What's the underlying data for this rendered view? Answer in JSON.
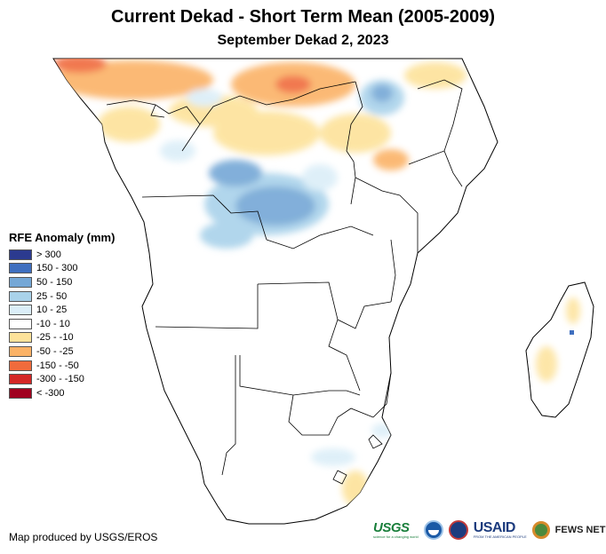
{
  "title": "Current Dekad - Short Term Mean (2005-2009)",
  "subtitle": "September Dekad 2, 2023",
  "legend": {
    "title": "RFE Anomaly (mm)",
    "items": [
      {
        "label": "> 300",
        "color": "#2b3a8f"
      },
      {
        "label": "150 - 300",
        "color": "#3f6fbf"
      },
      {
        "label": "50 - 150",
        "color": "#74a7d6"
      },
      {
        "label": "25 - 50",
        "color": "#a9d2ea"
      },
      {
        "label": "10 - 25",
        "color": "#dbeef8"
      },
      {
        "label": "-10 - 10",
        "color": "#ffffff"
      },
      {
        "label": "-25 - -10",
        "color": "#fde29a"
      },
      {
        "label": "-50 - -25",
        "color": "#fbb266"
      },
      {
        "label": "-150 - -50",
        "color": "#f06b3c"
      },
      {
        "label": "-300 - -150",
        "color": "#d42626"
      },
      {
        "label": "< -300",
        "color": "#a0001f"
      }
    ]
  },
  "credit": "Map produced by USGS/EROS",
  "logos": {
    "usgs": "USGS",
    "usgs_tagline": "science for a changing world",
    "noaa": "noaa-logo",
    "usaid": "USAID",
    "usaid_tagline": "FROM THE AMERICAN PEOPLE",
    "fews": "FEWS NET"
  }
}
